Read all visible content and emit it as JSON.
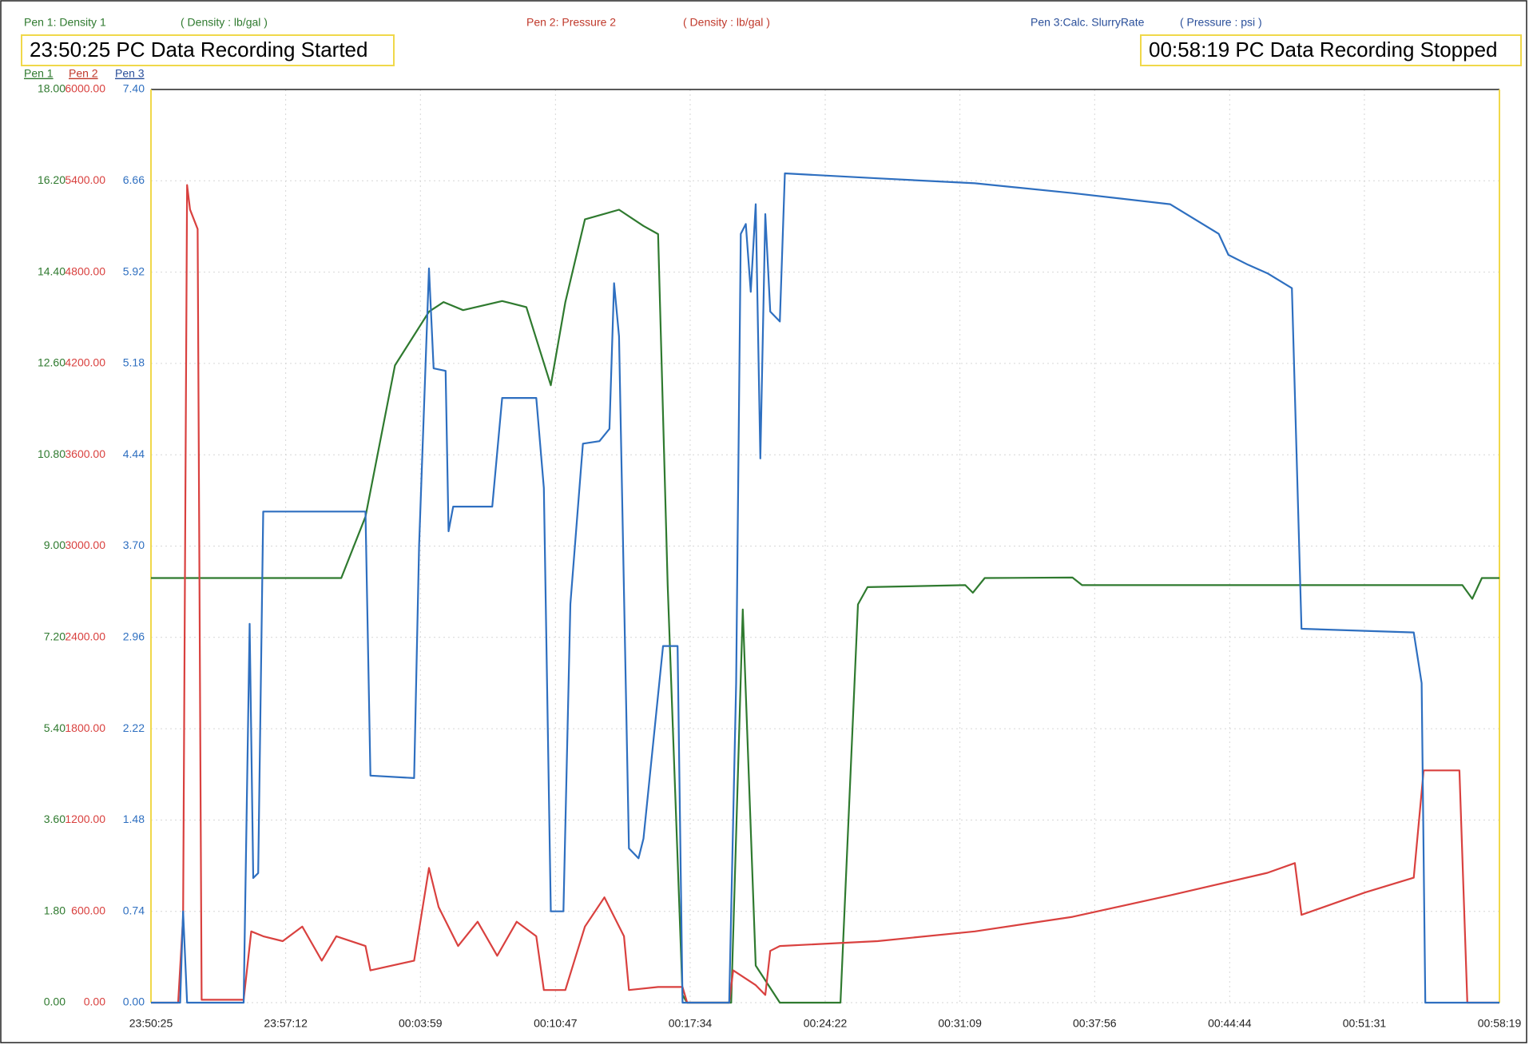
{
  "chart_data": {
    "type": "line",
    "annotations": [
      "23:50:25 PC Data Recording Started",
      "00:58:19 PC Data Recording Stopped"
    ],
    "grid": true,
    "xlim": [
      "23:50:25",
      "00:58:19"
    ],
    "xticks": [
      "23:50:25",
      "23:57:12",
      "00:03:59",
      "00:10:47",
      "00:17:34",
      "00:24:22",
      "00:31:09",
      "00:37:56",
      "00:44:44",
      "00:51:31",
      "00:58:19"
    ],
    "series": [
      {
        "name": "Pen 1: Density 1",
        "unit": "( Density : lb/gal )",
        "legend": "Pen 1",
        "color": "#2f7a2f",
        "ylim": [
          0,
          18
        ],
        "yticks": [
          {
            "value": 0,
            "label": "0.00"
          },
          {
            "value": 1.8,
            "label": "1.80"
          },
          {
            "value": 3.6,
            "label": "3.60"
          },
          {
            "value": 5.4,
            "label": "5.40"
          },
          {
            "value": 7.2,
            "label": "7.20"
          },
          {
            "value": 9,
            "label": "9.00"
          },
          {
            "value": 10.8,
            "label": "10.80"
          },
          {
            "value": 12.6,
            "label": "12.60"
          },
          {
            "value": 14.4,
            "label": "14.40"
          },
          {
            "value": 16.2,
            "label": "16.20"
          },
          {
            "value": 18,
            "label": "18.00"
          }
        ],
        "x": [
          "23:50:25",
          "00:00:00",
          "00:01:13",
          "00:02:42",
          "00:04:25",
          "00:05:09",
          "00:06:08",
          "00:08:06",
          "00:09:19",
          "00:10:33",
          "00:11:17",
          "00:12:16",
          "00:13:59",
          "00:15:13",
          "00:15:57",
          "00:16:26",
          "00:17:11",
          "00:17:25",
          "00:19:38",
          "00:20:13",
          "00:20:52",
          "00:22:05",
          "00:25:08",
          "00:26:01",
          "00:26:30",
          "00:31:25",
          "00:31:48",
          "00:32:24",
          "00:36:49",
          "00:37:18",
          "00:56:27",
          "00:56:57",
          "00:57:26",
          "00:58:19"
        ],
        "values": [
          8.37,
          8.37,
          9.58,
          12.56,
          13.62,
          13.81,
          13.65,
          13.83,
          13.71,
          12.17,
          13.81,
          15.44,
          15.63,
          15.31,
          15.15,
          8.23,
          0.15,
          0,
          0,
          7.75,
          0.73,
          0,
          0,
          7.85,
          8.19,
          8.23,
          8.08,
          8.37,
          8.38,
          8.23,
          8.23,
          7.96,
          8.37,
          8.37
        ]
      },
      {
        "name": "Pen 2: Pressure 2",
        "unit": "( Density : lb/gal )",
        "legend": "Pen 2",
        "color": "#d9413f",
        "ylim": [
          0,
          6000
        ],
        "yticks": [
          {
            "value": 0,
            "label": "0.00"
          },
          {
            "value": 600,
            "label": "600.00"
          },
          {
            "value": 1200,
            "label": "1200.00"
          },
          {
            "value": 1800,
            "label": "1800.00"
          },
          {
            "value": 2400,
            "label": "2400.00"
          },
          {
            "value": 3000,
            "label": "3000.00"
          },
          {
            "value": 3600,
            "label": "3600.00"
          },
          {
            "value": 4200,
            "label": "4200.00"
          },
          {
            "value": 4800,
            "label": "4800.00"
          },
          {
            "value": 5400,
            "label": "5400.00"
          },
          {
            "value": 6000,
            "label": "6000.00"
          }
        ],
        "x": [
          "23:50:25",
          "23:51:47",
          "23:52:02",
          "23:52:14",
          "23:52:23",
          "23:52:46",
          "23:52:58",
          "23:55:05",
          "23:55:28",
          "23:56:04",
          "23:57:03",
          "23:58:02",
          "23:59:01",
          "23:59:45",
          "00:01:13",
          "00:01:28",
          "00:03:40",
          "00:04:25",
          "00:04:54",
          "00:05:53",
          "00:06:52",
          "00:07:51",
          "00:08:50",
          "00:09:49",
          "00:10:12",
          "00:11:17",
          "00:12:16",
          "00:13:15",
          "00:14:14",
          "00:14:29",
          "00:15:57",
          "00:17:11",
          "00:17:25",
          "00:19:32",
          "00:19:44",
          "00:20:52",
          "00:21:21",
          "00:21:36",
          "00:22:05",
          "00:27:00",
          "00:31:54",
          "00:36:49",
          "00:41:44",
          "00:46:38",
          "00:48:01",
          "00:48:21",
          "00:51:33",
          "00:54:00",
          "00:54:30",
          "00:56:18",
          "00:56:42",
          "00:58:19"
        ],
        "values": [
          0,
          0,
          564,
          5372,
          5211,
          5083,
          19,
          19,
          468,
          436,
          404,
          500,
          276,
          436,
          372,
          212,
          276,
          885,
          628,
          372,
          532,
          308,
          532,
          436,
          83,
          83,
          500,
          692,
          436,
          83,
          103,
          103,
          0,
          0,
          212,
          115,
          51,
          340,
          372,
          404,
          468,
          564,
          705,
          853,
          917,
          577,
          724,
          821,
          1526,
          1526,
          0,
          0
        ]
      },
      {
        "name": "Pen 3:Calc. SlurryRate",
        "unit": "( Pressure : psi )",
        "legend": "Pen 3",
        "color": "#2e6fc0",
        "ylim": [
          0,
          7.4
        ],
        "yticks": [
          {
            "value": 0,
            "label": "0.00"
          },
          0.74,
          1.48,
          2.22,
          2.96,
          {
            "value": 3.7,
            "label": "3.70"
          },
          4.44,
          5.18,
          5.92,
          6.66,
          {
            "value": 7.4,
            "label": "7.40"
          }
        ],
        "x": [
          "23:50:25",
          "23:51:53",
          "23:52:02",
          "23:52:14",
          "23:55:05",
          "23:55:23",
          "23:55:34",
          "23:55:49",
          "23:56:04",
          "23:59:01",
          "00:01:13",
          "00:01:28",
          "00:03:40",
          "00:03:55",
          "00:04:25",
          "00:04:39",
          "00:05:15",
          "00:05:24",
          "00:05:38",
          "00:07:36",
          "00:08:06",
          "00:09:49",
          "00:10:12",
          "00:10:33",
          "00:11:11",
          "00:11:32",
          "00:12:10",
          "00:13:00",
          "00:13:30",
          "00:13:44",
          "00:13:59",
          "00:14:29",
          "00:14:58",
          "00:15:13",
          "00:16:12",
          "00:16:56",
          "00:17:11",
          "00:19:32",
          "00:19:53",
          "00:20:07",
          "00:20:22",
          "00:20:37",
          "00:20:52",
          "00:21:06",
          "00:21:21",
          "00:21:36",
          "00:22:05",
          "00:22:20",
          "00:27:00",
          "00:31:54",
          "00:36:49",
          "00:41:44",
          "00:44:11",
          "00:44:40",
          "00:45:39",
          "00:46:38",
          "00:47:52",
          "00:48:21",
          "00:54:00",
          "00:54:24",
          "00:54:35",
          "00:58:19"
        ],
        "values": [
          0,
          0,
          0.74,
          0,
          0,
          3.07,
          1.01,
          1.05,
          3.98,
          3.98,
          3.98,
          1.84,
          1.82,
          3.7,
          5.95,
          5.14,
          5.12,
          3.82,
          4.02,
          4.02,
          4.9,
          4.9,
          4.17,
          0.74,
          0.74,
          3.23,
          4.53,
          4.55,
          4.65,
          5.83,
          5.4,
          1.25,
          1.17,
          1.33,
          2.89,
          2.89,
          0,
          0,
          2.59,
          6.23,
          6.31,
          5.76,
          6.47,
          4.41,
          6.39,
          5.6,
          5.52,
          6.72,
          6.68,
          6.64,
          6.56,
          6.47,
          6.23,
          6.06,
          5.98,
          5.91,
          5.79,
          3.03,
          3.0,
          2.59,
          0,
          0
        ]
      }
    ]
  }
}
